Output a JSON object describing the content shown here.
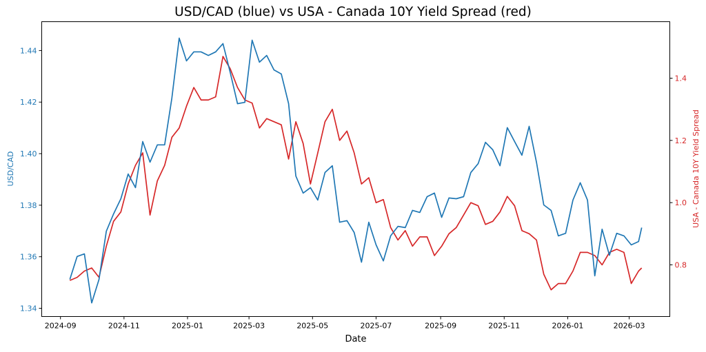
{
  "chart_data": {
    "type": "line",
    "title": "USD/CAD (blue) vs USA - Canada 10Y Yield Spread (red)",
    "xlabel": "Date",
    "ylabel_left": "USD/CAD",
    "ylabel_right": "USA - Canada 10Y Yield Spread",
    "xlim": [
      "2024-08-14",
      "2026-04-09"
    ],
    "ylim_left": [
      1.3368,
      1.4512
    ],
    "ylim_right": [
      0.634,
      1.5815
    ],
    "x_ticks": [
      "2024-09",
      "2024-11",
      "2025-01",
      "2025-03",
      "2025-05",
      "2025-07",
      "2025-09",
      "2025-11",
      "2026-01",
      "2026-03"
    ],
    "y_ticks_left": [
      "1.34",
      "1.36",
      "1.38",
      "1.40",
      "1.42",
      "1.44"
    ],
    "y_ticks_right": [
      "0.8",
      "1.0",
      "1.2",
      "1.4"
    ],
    "grid": false,
    "legend": "none",
    "colors": {
      "usdcad": "#1f77b4",
      "spread": "#d62728"
    },
    "x": [
      "2024-09-10",
      "2024-09-17",
      "2024-09-24",
      "2024-10-01",
      "2024-10-08",
      "2024-10-15",
      "2024-10-22",
      "2024-10-29",
      "2024-11-05",
      "2024-11-12",
      "2024-11-19",
      "2024-11-26",
      "2024-12-03",
      "2024-12-10",
      "2024-12-17",
      "2024-12-24",
      "2024-12-31",
      "2025-01-07",
      "2025-01-14",
      "2025-01-21",
      "2025-01-28",
      "2025-02-04",
      "2025-02-11",
      "2025-02-18",
      "2025-02-25",
      "2025-03-04",
      "2025-03-11",
      "2025-03-18",
      "2025-03-25",
      "2025-04-01",
      "2025-04-08",
      "2025-04-15",
      "2025-04-22",
      "2025-04-29",
      "2025-05-06",
      "2025-05-13",
      "2025-05-20",
      "2025-05-27",
      "2025-06-03",
      "2025-06-10",
      "2025-06-17",
      "2025-06-24",
      "2025-07-01",
      "2025-07-08",
      "2025-07-15",
      "2025-07-22",
      "2025-07-29",
      "2025-08-05",
      "2025-08-12",
      "2025-08-19",
      "2025-08-26",
      "2025-09-02",
      "2025-09-09",
      "2025-09-16",
      "2025-09-23",
      "2025-09-30",
      "2025-10-07",
      "2025-10-14",
      "2025-10-21",
      "2025-10-28",
      "2025-11-04",
      "2025-11-11",
      "2025-11-18",
      "2025-11-25",
      "2025-12-02",
      "2025-12-09",
      "2025-12-16",
      "2025-12-23",
      "2025-12-30",
      "2026-01-06",
      "2026-01-13",
      "2026-01-20",
      "2026-01-27",
      "2026-02-03",
      "2026-02-10",
      "2026-02-17",
      "2026-02-24",
      "2026-03-03",
      "2026-03-10",
      "2026-03-13"
    ],
    "series": [
      {
        "axis": "left",
        "values": [
          1.3512,
          1.3601,
          1.3611,
          1.3421,
          1.3512,
          1.3699,
          1.3766,
          1.3825,
          1.3921,
          1.3868,
          1.4047,
          1.3967,
          1.4034,
          1.4034,
          1.4216,
          1.4448,
          1.436,
          1.4395,
          1.4395,
          1.4381,
          1.4395,
          1.4427,
          1.4314,
          1.4194,
          1.4199,
          1.444,
          1.4355,
          1.4381,
          1.4325,
          1.4309,
          1.4194,
          1.3913,
          1.3847,
          1.3868,
          1.382,
          1.3927,
          1.3953,
          1.3734,
          1.374,
          1.3694,
          1.3579,
          1.3734,
          1.3646,
          1.3584,
          1.3681,
          1.3718,
          1.3713,
          1.378,
          1.3772,
          1.3833,
          1.3847,
          1.3753,
          1.3828,
          1.3825,
          1.3833,
          1.3927,
          1.3961,
          1.4044,
          1.4015,
          1.3953,
          1.4101,
          1.4047,
          1.3994,
          1.4106,
          1.3967,
          1.3801,
          1.378,
          1.3681,
          1.3691,
          1.382,
          1.3887,
          1.382,
          1.3526,
          1.3707,
          1.3606,
          1.3691,
          1.3681,
          1.3646,
          1.3659,
          1.3713
        ]
      },
      {
        "axis": "right",
        "values": [
          0.75,
          0.76,
          0.78,
          0.79,
          0.76,
          0.86,
          0.94,
          0.97,
          1.06,
          1.12,
          1.16,
          0.96,
          1.07,
          1.12,
          1.21,
          1.24,
          1.31,
          1.37,
          1.33,
          1.33,
          1.34,
          1.47,
          1.43,
          1.37,
          1.33,
          1.32,
          1.24,
          1.27,
          1.26,
          1.25,
          1.14,
          1.26,
          1.19,
          1.06,
          1.16,
          1.26,
          1.3,
          1.2,
          1.23,
          1.16,
          1.06,
          1.08,
          1.0,
          1.01,
          0.92,
          0.88,
          0.91,
          0.86,
          0.89,
          0.89,
          0.83,
          0.86,
          0.9,
          0.92,
          0.96,
          1.0,
          0.99,
          0.93,
          0.94,
          0.97,
          1.02,
          0.99,
          0.91,
          0.9,
          0.88,
          0.77,
          0.72,
          0.74,
          0.74,
          0.78,
          0.84,
          0.84,
          0.83,
          0.8,
          0.84,
          0.85,
          0.84,
          0.74,
          0.78,
          0.79
        ]
      }
    ]
  }
}
